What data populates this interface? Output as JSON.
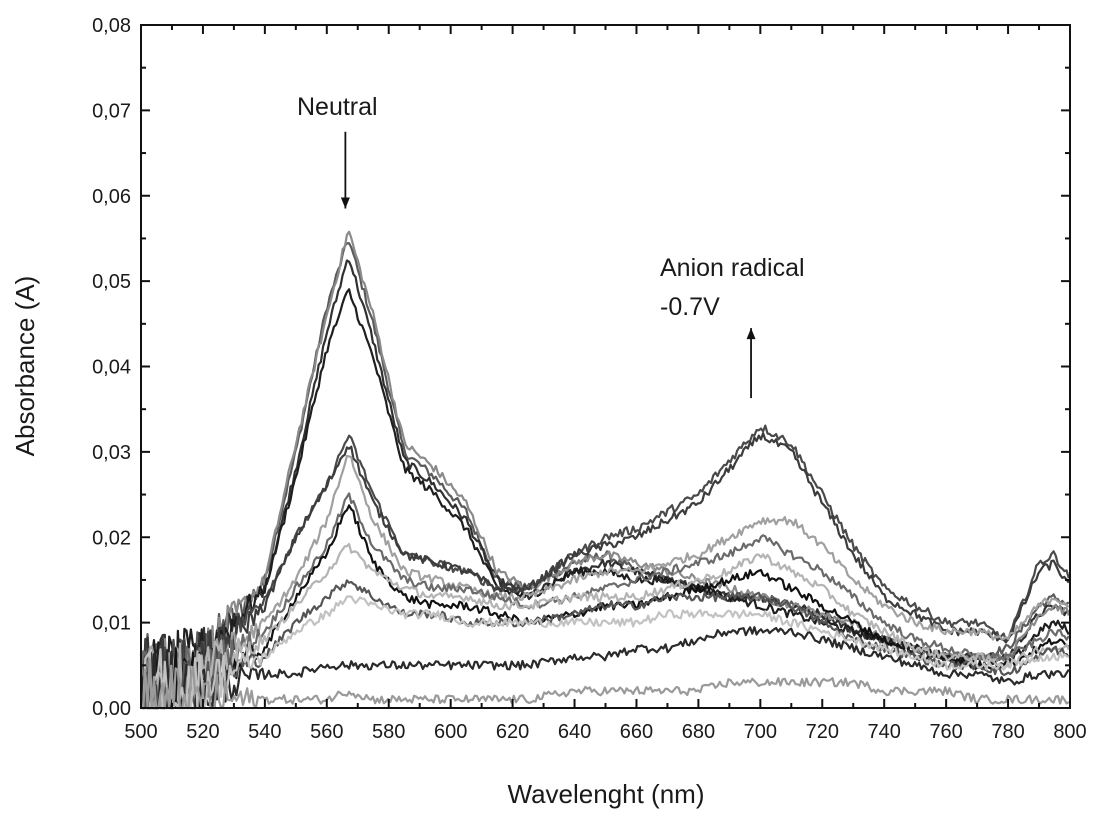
{
  "chart_data": {
    "type": "line",
    "title": "",
    "xlabel": "Wavelenght (nm)",
    "ylabel": "Absorbance (A)",
    "xlim": [
      500,
      800
    ],
    "ylim": [
      0.0,
      0.08
    ],
    "x_ticks": [
      500,
      520,
      540,
      560,
      580,
      600,
      620,
      640,
      660,
      680,
      700,
      720,
      740,
      760,
      780,
      800
    ],
    "x_tick_labels": [
      "500",
      "520",
      "540",
      "560",
      "580",
      "600",
      "620",
      "640",
      "660",
      "680",
      "700",
      "720",
      "740",
      "760",
      "780",
      "800"
    ],
    "y_ticks": [
      0.0,
      0.01,
      0.02,
      0.03,
      0.04,
      0.05,
      0.06,
      0.07,
      0.08
    ],
    "y_tick_labels": [
      "0,00",
      "0,01",
      "0,02",
      "0,03",
      "0,04",
      "0,05",
      "0,06",
      "0,07",
      "0,08"
    ],
    "grid": false,
    "legend": "none",
    "x": [
      500,
      520,
      540,
      550,
      560,
      567,
      575,
      585,
      595,
      605,
      615,
      625,
      640,
      650,
      660,
      670,
      680,
      690,
      700,
      710,
      720,
      730,
      740,
      750,
      760,
      770,
      780,
      790,
      795,
      800
    ],
    "series": [
      {
        "color": "#5a5a5a",
        "values": [
          0.002,
          0.006,
          0.015,
          0.03,
          0.047,
          0.055,
          0.045,
          0.03,
          0.027,
          0.023,
          0.015,
          0.014,
          0.017,
          0.018,
          0.016,
          0.015,
          0.014,
          0.013,
          0.013,
          0.012,
          0.011,
          0.009,
          0.008,
          0.007,
          0.006,
          0.006,
          0.007,
          0.012,
          0.013,
          0.012
        ]
      },
      {
        "color": "#303030",
        "values": [
          0.002,
          0.006,
          0.014,
          0.028,
          0.044,
          0.053,
          0.043,
          0.029,
          0.026,
          0.022,
          0.015,
          0.013,
          0.016,
          0.017,
          0.016,
          0.015,
          0.014,
          0.013,
          0.013,
          0.012,
          0.011,
          0.009,
          0.008,
          0.007,
          0.006,
          0.006,
          0.006,
          0.011,
          0.012,
          0.011
        ]
      },
      {
        "color": "#8a8a8a",
        "values": [
          0.002,
          0.006,
          0.015,
          0.031,
          0.046,
          0.056,
          0.046,
          0.031,
          0.028,
          0.024,
          0.016,
          0.014,
          0.017,
          0.018,
          0.017,
          0.016,
          0.015,
          0.014,
          0.013,
          0.012,
          0.011,
          0.01,
          0.008,
          0.007,
          0.006,
          0.006,
          0.006,
          0.011,
          0.012,
          0.011
        ]
      },
      {
        "color": "#1e1e1e",
        "values": [
          0.002,
          0.006,
          0.014,
          0.027,
          0.042,
          0.049,
          0.041,
          0.028,
          0.025,
          0.021,
          0.014,
          0.013,
          0.016,
          0.016,
          0.015,
          0.015,
          0.014,
          0.013,
          0.012,
          0.011,
          0.01,
          0.009,
          0.008,
          0.007,
          0.006,
          0.005,
          0.005,
          0.009,
          0.01,
          0.009
        ]
      },
      {
        "color": "#4a4a4a",
        "values": [
          0.002,
          0.005,
          0.013,
          0.02,
          0.026,
          0.032,
          0.025,
          0.018,
          0.017,
          0.016,
          0.014,
          0.014,
          0.018,
          0.02,
          0.021,
          0.023,
          0.025,
          0.029,
          0.033,
          0.031,
          0.025,
          0.019,
          0.014,
          0.012,
          0.01,
          0.01,
          0.008,
          0.017,
          0.018,
          0.015
        ]
      },
      {
        "color": "#3c3c3c",
        "values": [
          0.002,
          0.005,
          0.012,
          0.02,
          0.026,
          0.031,
          0.024,
          0.018,
          0.017,
          0.016,
          0.014,
          0.014,
          0.018,
          0.019,
          0.02,
          0.022,
          0.024,
          0.028,
          0.032,
          0.03,
          0.024,
          0.018,
          0.013,
          0.011,
          0.009,
          0.009,
          0.008,
          0.016,
          0.017,
          0.014
        ]
      },
      {
        "color": "#a0a0a0",
        "values": [
          0.001,
          0.004,
          0.01,
          0.015,
          0.022,
          0.03,
          0.022,
          0.016,
          0.015,
          0.014,
          0.013,
          0.013,
          0.015,
          0.016,
          0.016,
          0.017,
          0.018,
          0.02,
          0.022,
          0.022,
          0.019,
          0.015,
          0.012,
          0.01,
          0.009,
          0.009,
          0.008,
          0.012,
          0.013,
          0.012
        ]
      },
      {
        "color": "#6a6a6a",
        "values": [
          0.001,
          0.004,
          0.009,
          0.014,
          0.019,
          0.025,
          0.019,
          0.015,
          0.014,
          0.014,
          0.013,
          0.012,
          0.013,
          0.014,
          0.015,
          0.016,
          0.017,
          0.018,
          0.02,
          0.018,
          0.016,
          0.013,
          0.01,
          0.008,
          0.007,
          0.006,
          0.006,
          0.008,
          0.009,
          0.008
        ]
      },
      {
        "color": "#111111",
        "values": [
          0.001,
          0.003,
          0.007,
          0.013,
          0.018,
          0.024,
          0.017,
          0.013,
          0.012,
          0.012,
          0.011,
          0.01,
          0.011,
          0.012,
          0.012,
          0.013,
          0.014,
          0.015,
          0.016,
          0.014,
          0.012,
          0.01,
          0.008,
          0.006,
          0.006,
          0.005,
          0.005,
          0.007,
          0.008,
          0.007
        ]
      },
      {
        "color": "#b4b4b4",
        "values": [
          0.001,
          0.004,
          0.008,
          0.012,
          0.016,
          0.019,
          0.016,
          0.014,
          0.013,
          0.013,
          0.012,
          0.012,
          0.013,
          0.013,
          0.013,
          0.014,
          0.015,
          0.016,
          0.018,
          0.016,
          0.014,
          0.011,
          0.009,
          0.007,
          0.006,
          0.006,
          0.005,
          0.007,
          0.007,
          0.007
        ]
      },
      {
        "color": "#555555",
        "values": [
          0.001,
          0.003,
          0.006,
          0.01,
          0.013,
          0.015,
          0.013,
          0.011,
          0.011,
          0.01,
          0.01,
          0.01,
          0.011,
          0.012,
          0.012,
          0.013,
          0.013,
          0.013,
          0.013,
          0.012,
          0.01,
          0.008,
          0.007,
          0.006,
          0.005,
          0.005,
          0.004,
          0.006,
          0.007,
          0.006
        ]
      },
      {
        "color": "#2a2a2a",
        "values": [
          0.001,
          0.002,
          0.004,
          0.004,
          0.005,
          0.005,
          0.005,
          0.005,
          0.005,
          0.005,
          0.005,
          0.005,
          0.006,
          0.006,
          0.007,
          0.007,
          0.008,
          0.009,
          0.009,
          0.009,
          0.008,
          0.007,
          0.006,
          0.005,
          0.004,
          0.004,
          0.003,
          0.004,
          0.004,
          0.004
        ]
      },
      {
        "color": "#c2c2c2",
        "values": [
          0.001,
          0.003,
          0.006,
          0.009,
          0.011,
          0.013,
          0.012,
          0.011,
          0.011,
          0.01,
          0.01,
          0.01,
          0.01,
          0.01,
          0.01,
          0.011,
          0.011,
          0.011,
          0.011,
          0.01,
          0.009,
          0.008,
          0.007,
          0.006,
          0.005,
          0.005,
          0.005,
          0.006,
          0.006,
          0.006
        ]
      },
      {
        "color": "#9a9a9a",
        "values": [
          0.0,
          0.001,
          0.001,
          0.001,
          0.001,
          0.002,
          0.001,
          0.001,
          0.001,
          0.001,
          0.001,
          0.001,
          0.002,
          0.002,
          0.002,
          0.002,
          0.002,
          0.003,
          0.003,
          0.003,
          0.003,
          0.003,
          0.002,
          0.002,
          0.002,
          0.001,
          0.001,
          0.001,
          0.001,
          0.001
        ]
      }
    ],
    "annotations": [
      {
        "text": "Neutral",
        "arrow": "down",
        "x": 566,
        "arrow_from_y": 0.0675,
        "arrow_to_y": 0.0585
      },
      {
        "text": "Anion radical",
        "line2": "-0.7V",
        "arrow": "up",
        "x": 697,
        "arrow_from_y": 0.0363,
        "arrow_to_y": 0.0445
      }
    ]
  }
}
